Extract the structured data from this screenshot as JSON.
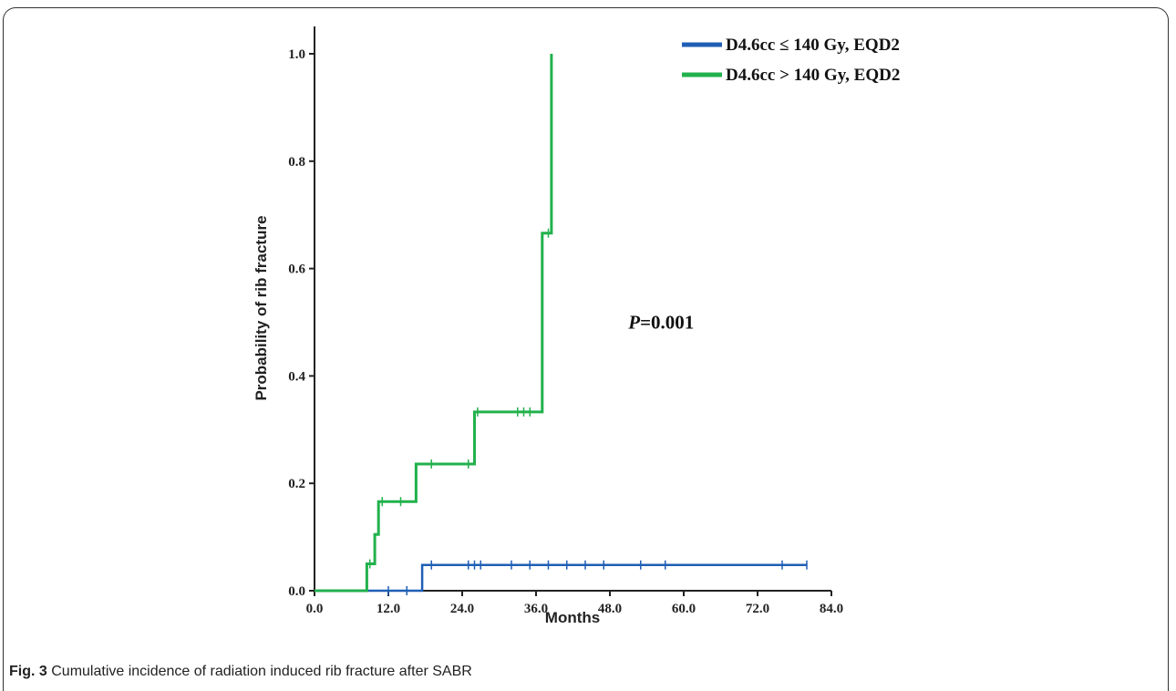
{
  "caption": {
    "label": "Fig. 3",
    "text": "Cumulative incidence of radiation induced rib fracture after SABR"
  },
  "chart_data": {
    "type": "line",
    "step": true,
    "xlabel": "Months",
    "ylabel": "Probability of rib fracture",
    "xlim": [
      0,
      84
    ],
    "ylim": [
      0,
      1.0
    ],
    "x_ticks": [
      "0.0",
      "12.0",
      "24.0",
      "36.0",
      "48.0",
      "60.0",
      "72.0",
      "84.0"
    ],
    "y_ticks": [
      "0.0",
      "0.2",
      "0.4",
      "0.6",
      "0.8",
      "1.0"
    ],
    "grid": false,
    "legend_position": "top-right",
    "annotations": [
      {
        "text_italic": "P",
        "text": "=0.001",
        "x": 51,
        "y": 0.5
      }
    ],
    "series": [
      {
        "name": "D4.6cc ≤ 140 Gy, EQD2",
        "color": "#1f5fb5",
        "points": [
          [
            0,
            0
          ],
          [
            17.5,
            0
          ],
          [
            17.5,
            0.048
          ],
          [
            80,
            0.048
          ]
        ],
        "censored": [
          [
            12,
            0
          ],
          [
            15,
            0
          ],
          [
            19,
            0.048
          ],
          [
            25,
            0.048
          ],
          [
            26,
            0.048
          ],
          [
            27,
            0.048
          ],
          [
            32,
            0.048
          ],
          [
            35,
            0.048
          ],
          [
            38,
            0.048
          ],
          [
            41,
            0.048
          ],
          [
            44,
            0.048
          ],
          [
            47,
            0.048
          ],
          [
            53,
            0.048
          ],
          [
            57,
            0.048
          ],
          [
            76,
            0.048
          ],
          [
            80,
            0.048
          ]
        ]
      },
      {
        "name": "D4.6cc > 140 Gy, EQD2",
        "color": "#22b14c",
        "points": [
          [
            0,
            0
          ],
          [
            8.5,
            0
          ],
          [
            8.5,
            0.05
          ],
          [
            9.8,
            0.05
          ],
          [
            9.8,
            0.105
          ],
          [
            10.4,
            0.105
          ],
          [
            10.4,
            0.166
          ],
          [
            16.5,
            0.166
          ],
          [
            16.5,
            0.236
          ],
          [
            26,
            0.236
          ],
          [
            26,
            0.333
          ],
          [
            37,
            0.333
          ],
          [
            37,
            0.666
          ],
          [
            38.5,
            0.666
          ],
          [
            38.5,
            1.0
          ]
        ],
        "censored": [
          [
            9,
            0.05
          ],
          [
            11,
            0.166
          ],
          [
            14,
            0.166
          ],
          [
            19,
            0.236
          ],
          [
            25,
            0.236
          ],
          [
            26.5,
            0.333
          ],
          [
            33,
            0.333
          ],
          [
            34,
            0.333
          ],
          [
            35,
            0.333
          ],
          [
            38,
            0.666
          ]
        ]
      }
    ]
  }
}
